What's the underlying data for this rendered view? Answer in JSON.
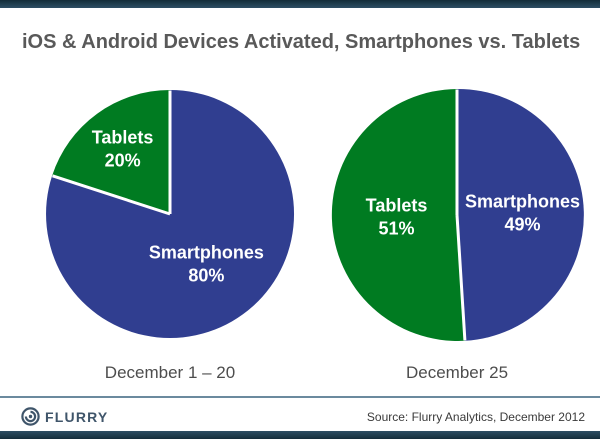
{
  "page": {
    "title": "iOS & Android Devices Activated, Smartphones vs. Tablets"
  },
  "colors": {
    "smartphones_blue": "#303E90",
    "tablets_green": "#007B21",
    "slice_divider": "#FFFFFF",
    "frame_bar_slate": "#2C4A5F",
    "title_gray": "#595959",
    "caption_gray": "#4D4D4D",
    "footer_rule": "#6B8A9E",
    "logo_slate": "#3F556A"
  },
  "chart_data": [
    {
      "type": "pie",
      "title": "December 1 – 20",
      "value_format": "percent",
      "label_color": "#FFFFFF",
      "slices": [
        {
          "label": "Smartphones",
          "value": 80,
          "color": "#303E90"
        },
        {
          "label": "Tablets",
          "value": 20,
          "color": "#007B21"
        }
      ]
    },
    {
      "type": "pie",
      "title": "December 25",
      "value_format": "percent",
      "label_color": "#FFFFFF",
      "slices": [
        {
          "label": "Smartphones",
          "value": 49,
          "color": "#303E90"
        },
        {
          "label": "Tablets",
          "value": 51,
          "color": "#007B21"
        }
      ]
    }
  ],
  "footer": {
    "logo_text": "FLURRY",
    "source": "Source: Flurry Analytics, December 2012"
  }
}
